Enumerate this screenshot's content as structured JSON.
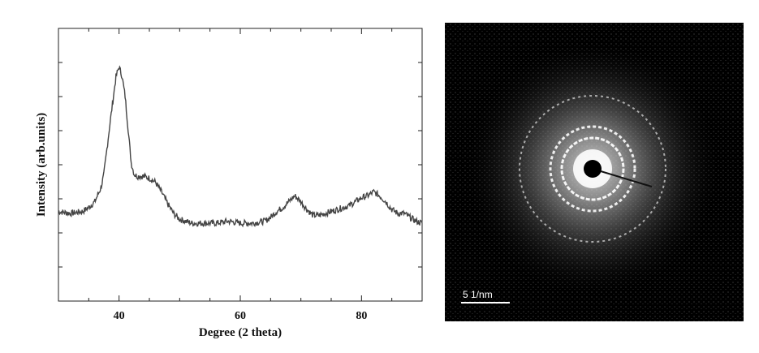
{
  "chart_data": {
    "type": "line",
    "xlabel": "Degree (2 theta)",
    "ylabel": "Intensity (arb.units)",
    "xlim": [
      30,
      90
    ],
    "ylim": [
      0,
      100
    ],
    "x_ticks": [
      40,
      60,
      80
    ],
    "grid": false,
    "y_tick_labels": false,
    "series": [
      {
        "x": [
          30,
          32,
          34,
          35,
          36,
          37,
          37.5,
          38,
          38.5,
          39,
          39.5,
          40,
          40.5,
          41,
          41.5,
          42,
          42.5,
          43,
          44,
          45,
          46,
          47,
          48,
          49,
          50,
          51,
          52,
          54,
          56,
          58,
          60,
          62,
          64,
          65,
          66,
          67,
          68,
          69,
          70,
          71,
          72,
          73,
          74,
          76,
          78,
          79,
          80,
          81,
          82,
          83,
          84,
          85,
          86,
          87,
          88,
          89,
          90
        ],
        "y": [
          23,
          22,
          23,
          25,
          28,
          35,
          42,
          55,
          68,
          80,
          92,
          97,
          92,
          82,
          65,
          48,
          42,
          41,
          41,
          40,
          38,
          33,
          27,
          22,
          19,
          18,
          17,
          17,
          17,
          18,
          17,
          17,
          18,
          20,
          23,
          25,
          28,
          31,
          28,
          24,
          21,
          21,
          22,
          24,
          26,
          28,
          30,
          31,
          33,
          31,
          28,
          24,
          22,
          22,
          20,
          18,
          17
        ]
      }
    ]
  },
  "saed": {
    "scale_label": "5 1/nm"
  }
}
